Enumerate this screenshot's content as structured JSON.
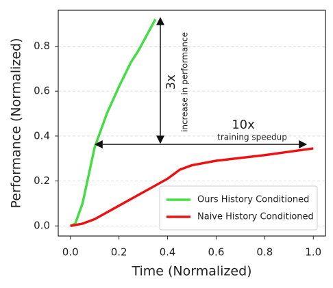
{
  "chart_data": {
    "type": "line",
    "xlabel": "Time (Normalized)",
    "ylabel": "Performance (Normalized)",
    "xlim": [
      -0.05,
      1.05
    ],
    "ylim": [
      -0.045,
      0.96
    ],
    "xticks": [
      {
        "value": 0,
        "label": "0.0"
      },
      0.2,
      0.4,
      0.6,
      0.8,
      {
        "value": 1,
        "label": "1.0"
      }
    ],
    "yticks": [
      {
        "value": 0,
        "label": "0.0"
      },
      0.2,
      0.4,
      0.6,
      0.8
    ],
    "grid": true,
    "legend": "lower right",
    "series": [
      {
        "name": "Ours History Conditioned",
        "color": "#44dd44",
        "x": [
          0,
          0.02,
          0.05,
          0.08,
          0.1,
          0.15,
          0.2,
          0.25,
          0.28,
          0.32,
          0.35
        ],
        "values": [
          0,
          0.01,
          0.1,
          0.25,
          0.35,
          0.5,
          0.62,
          0.73,
          0.78,
          0.86,
          0.92
        ]
      },
      {
        "name": "Naive History Conditioned",
        "color": "#ee1111",
        "x": [
          0,
          0.05,
          0.1,
          0.2,
          0.3,
          0.4,
          0.45,
          0.5,
          0.6,
          0.8,
          1.0
        ],
        "values": [
          0,
          0.01,
          0.03,
          0.09,
          0.15,
          0.21,
          0.25,
          0.27,
          0.29,
          0.315,
          0.345
        ]
      }
    ],
    "annotations": [
      "3x",
      "increase in performance",
      "10x",
      "training speedup"
    ]
  }
}
